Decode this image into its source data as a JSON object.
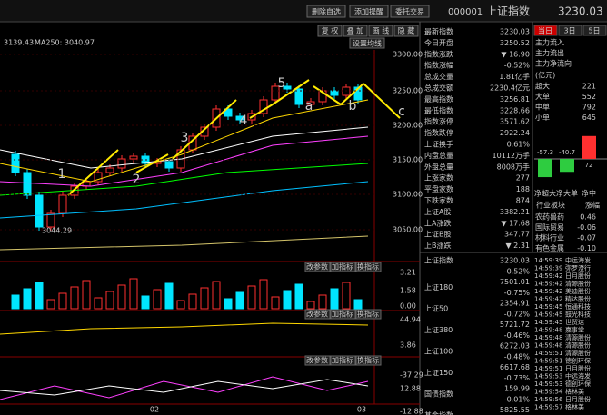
{
  "toolbar": {
    "buttons": [
      "删除自选",
      "添加提醒",
      "委托交易"
    ],
    "code": "000001",
    "name": "上证指数",
    "price": "3230.03"
  },
  "chart": {
    "tools": [
      "复 权",
      "叠 加",
      "画 线",
      "隐 藏"
    ],
    "ma_label": "3139.43",
    "ma250": "MA250: 3040.97",
    "ma_button": "设置均线",
    "price_ticks": [
      "3300.00",
      "3250.00",
      "3200.00",
      "3150.00",
      "3100.00",
      "3050.00"
    ],
    "low_label": "3044.29",
    "waves": [
      "1",
      "2",
      "3",
      "4",
      "5",
      "a",
      "b",
      "c"
    ],
    "panels": [
      {
        "buttons": [
          "改参数",
          "加指标",
          "换指标"
        ],
        "ticks": [
          "3.21",
          "1.58",
          "0.00"
        ]
      },
      {
        "buttons": [
          "改参数",
          "加指标",
          "换指标"
        ],
        "ticks": [
          "44.94",
          "3.86",
          "-37.29"
        ]
      },
      {
        "buttons": [
          "改参数",
          "加指标",
          "换指标"
        ],
        "ticks": [
          "12.88",
          "-12.88"
        ]
      }
    ],
    "dates": [
      "02",
      "03"
    ]
  },
  "quote": {
    "rows": [
      [
        "最新指数",
        "3230.03"
      ],
      [
        "今日开盘",
        "3250.52"
      ],
      [
        "指数涨跌",
        "▼ 16.90"
      ],
      [
        "指数涨幅",
        "-0.52%"
      ],
      [
        "总成交量",
        "1.81亿手"
      ],
      [
        "总成交额",
        "2230.4亿元"
      ],
      [
        "最高指数",
        "3256.81"
      ],
      [
        "最低指数",
        "3228.66"
      ],
      [
        "指数涨停",
        "3571.62"
      ],
      [
        "指数跌停",
        "2922.24"
      ],
      [
        "上证换手",
        "0.61%"
      ],
      [
        "内盘总量",
        "10112万手"
      ],
      [
        "外盘总量",
        "8008万手"
      ],
      [
        "上涨家数",
        "277"
      ],
      [
        "平盘家数",
        "188"
      ],
      [
        "下跌家数",
        "874"
      ],
      [
        "上证A股",
        "3382.21"
      ],
      [
        "上A涨跌",
        "▼ 17.68"
      ],
      [
        "上证B股",
        "347.77"
      ],
      [
        "上B涨跌",
        "▼ 2.31"
      ]
    ]
  },
  "flow": {
    "tabs": [
      "当日",
      "3日",
      "5日"
    ],
    "labels": [
      "主力流入",
      "主力流出",
      "主力净流向"
    ],
    "unit": "(亿元)",
    "rows": [
      [
        "超大",
        "221"
      ],
      [
        "大单",
        "552"
      ],
      [
        "中单",
        "792"
      ],
      [
        "小单",
        "645"
      ]
    ],
    "bars": [
      "-57.3",
      "-40.7",
      "72"
    ],
    "bar_labels": [
      "净超大",
      "净大单",
      "净中"
    ]
  },
  "sectors": {
    "header": [
      "行业板块",
      "涨幅"
    ],
    "rows": [
      [
        "农药兽药",
        "0.46"
      ],
      [
        "国际贸易",
        "-0.06"
      ],
      [
        "材料行业",
        "-0.07"
      ],
      [
        "有色金属",
        "-0.10"
      ]
    ]
  },
  "indices": {
    "rows": [
      [
        "上证指数",
        "3230.03",
        "-0.52%"
      ],
      [
        "上证180",
        "7501.01",
        "-0.75%"
      ],
      [
        "上证50",
        "2354.91",
        "-0.72%"
      ],
      [
        "上证380",
        "5721.72",
        "-0.46%"
      ],
      [
        "上证100",
        "6272.03",
        "-0.48%"
      ],
      [
        "上证150",
        "6617.68",
        "-0.73%"
      ],
      [
        "国债指数",
        "159.99",
        "-0.01%"
      ],
      [
        "基金指数",
        "5825.55",
        null
      ]
    ]
  },
  "trades": {
    "rows": [
      [
        "14:59:39",
        "中远海发"
      ],
      [
        "14:59:39",
        "弥罗澄行"
      ],
      [
        "14:59:42",
        "日月股份"
      ],
      [
        "14:59:42",
        "清源股份"
      ],
      [
        "14:59:42",
        "美迪股份"
      ],
      [
        "14:59:42",
        "精达股份"
      ],
      [
        "14:59:45",
        "恒通科技"
      ],
      [
        "14:59:45",
        "鼓光科技"
      ],
      [
        "14:59:45",
        "世贸达"
      ],
      [
        "14:59:48",
        "嘉事堂"
      ],
      [
        "14:59:48",
        "清源股份"
      ],
      [
        "14:59:48",
        "清源股份"
      ],
      [
        "14:59:51",
        "清源股份"
      ],
      [
        "14:59:51",
        "德创环保"
      ],
      [
        "14:59:51",
        "日月股份"
      ],
      [
        "14:59:53",
        "中远海发"
      ],
      [
        "14:59:53",
        "德创环保"
      ],
      [
        "14:59:54",
        "格林美"
      ],
      [
        "14:59:56",
        "日月股份"
      ],
      [
        "14:59:57",
        "格林美"
      ]
    ]
  }
}
